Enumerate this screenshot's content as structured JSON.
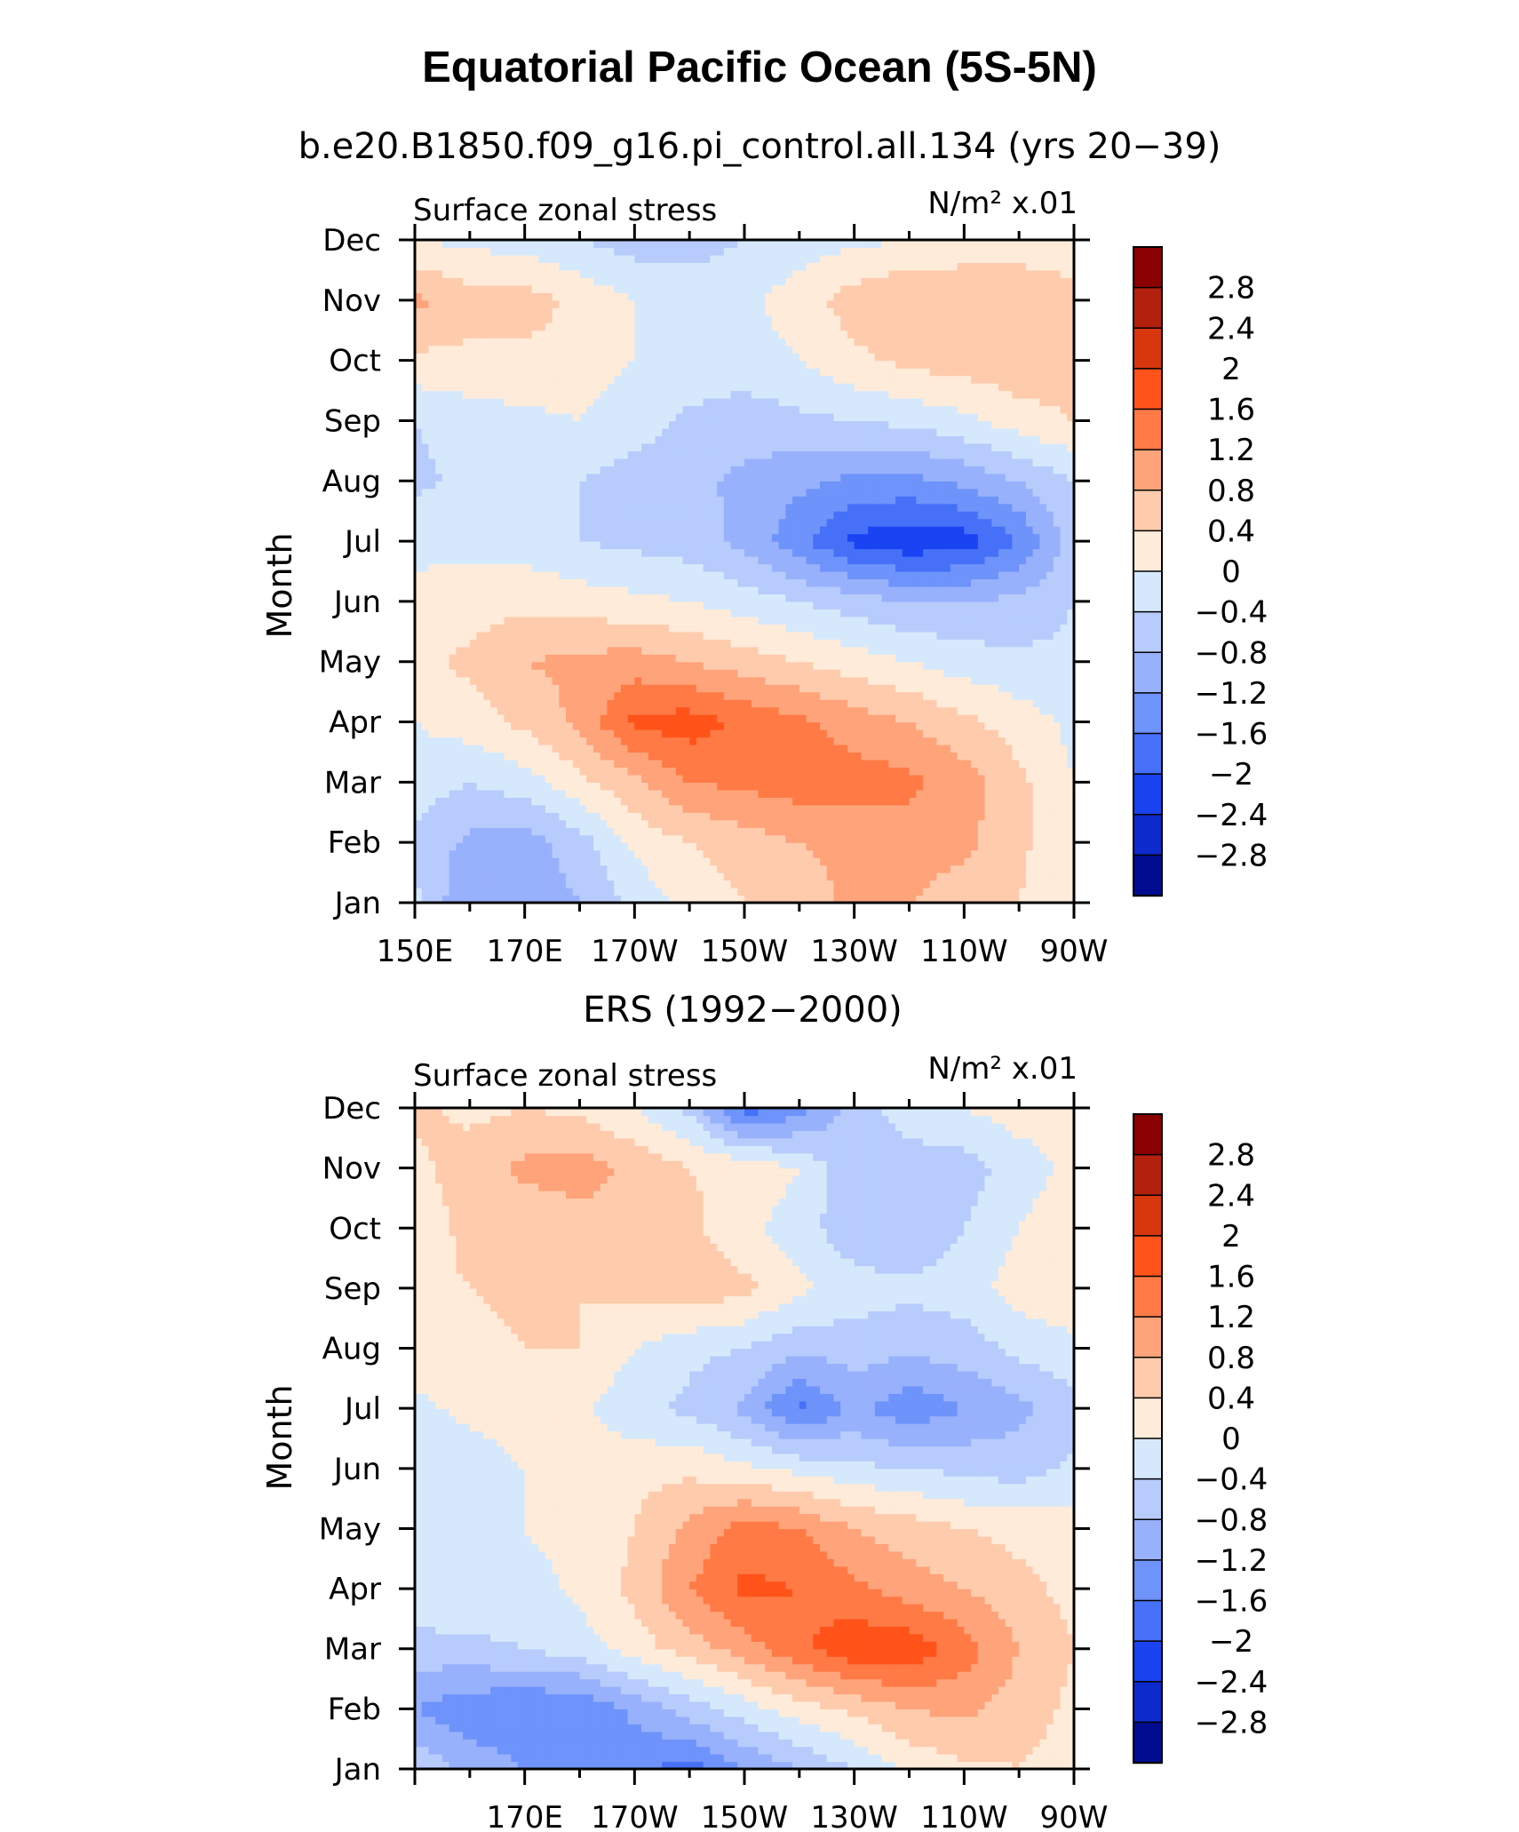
{
  "title": "Equatorial Pacific Ocean (5S-5N)",
  "colorbar": {
    "labels": [
      "2.8",
      "2.4",
      "2",
      "1.6",
      "1.2",
      "0.8",
      "0.4",
      "0",
      "−0.4",
      "−0.8",
      "−1.2",
      "−1.6",
      "−2",
      "−2.4",
      "−2.8"
    ],
    "colors": [
      "#8b0000",
      "#b3200e",
      "#d8370e",
      "#ff531a",
      "#ff7a45",
      "#ffa37a",
      "#ffcbad",
      "#ffebd9",
      "#d6e9fc",
      "#b7ccfc",
      "#98b1fc",
      "#6e93fa",
      "#4670f8",
      "#1a43f2",
      "#0d2acc",
      "#000c8f"
    ]
  },
  "chart_data": [
    {
      "type": "heatmap",
      "subtitle": "b.e20.B1850.f09_g16.pi_control.all.134 (yrs 20−39)",
      "variable": "Surface zonal stress",
      "units": "N/m² x.01",
      "ylabel": "Month",
      "y_categories": [
        "Jan",
        "Feb",
        "Mar",
        "Apr",
        "May",
        "Jun",
        "Jul",
        "Aug",
        "Sep",
        "Oct",
        "Nov",
        "Dec"
      ],
      "x_ticks": [
        "150E",
        "170E",
        "170W",
        "150W",
        "130W",
        "110W",
        "90W"
      ],
      "x_values": [
        "150E",
        "160E",
        "170E",
        "180",
        "170W",
        "160W",
        "150W",
        "140W",
        "130W",
        "120W",
        "110W",
        "100W",
        "90W"
      ],
      "values": [
        [
          -0.3,
          -1.2,
          -1.0,
          -0.8,
          -0.3,
          0.2,
          0.4,
          0.6,
          0.9,
          0.8,
          0.6,
          0.4,
          0.0
        ],
        [
          -0.5,
          -0.9,
          -1.0,
          -0.6,
          0.1,
          0.4,
          0.6,
          0.8,
          0.9,
          1.0,
          0.9,
          0.5,
          0.0
        ],
        [
          -0.2,
          -0.4,
          -0.2,
          0.3,
          0.7,
          1.2,
          1.3,
          1.4,
          1.4,
          1.3,
          1.0,
          0.5,
          0.0
        ],
        [
          0.0,
          0.2,
          0.5,
          0.9,
          1.7,
          1.8,
          1.5,
          1.3,
          1.0,
          0.8,
          0.5,
          0.2,
          -0.1
        ],
        [
          0.3,
          0.5,
          0.8,
          0.9,
          1.0,
          0.8,
          0.6,
          0.4,
          0.2,
          0.0,
          -0.2,
          -0.3,
          -0.3
        ],
        [
          0.1,
          0.2,
          0.3,
          0.2,
          0.1,
          0.0,
          -0.2,
          -0.4,
          -0.6,
          -0.8,
          -0.8,
          -0.7,
          -0.4
        ],
        [
          -0.1,
          -0.1,
          -0.2,
          -0.4,
          -0.5,
          -0.6,
          -0.9,
          -1.5,
          -2.1,
          -2.3,
          -2.2,
          -1.6,
          -0.6
        ],
        [
          -0.5,
          -0.3,
          -0.2,
          -0.4,
          -0.6,
          -0.7,
          -0.9,
          -1.1,
          -1.3,
          -1.3,
          -1.1,
          -0.8,
          -0.4
        ],
        [
          -0.4,
          -0.2,
          -0.1,
          0.0,
          -0.2,
          -0.5,
          -0.6,
          -0.5,
          -0.4,
          -0.3,
          -0.1,
          0.2,
          0.4
        ],
        [
          0.3,
          0.3,
          0.3,
          0.2,
          0.0,
          -0.1,
          -0.2,
          0.0,
          0.3,
          0.5,
          0.6,
          0.7,
          0.6
        ],
        [
          0.9,
          0.6,
          0.6,
          0.3,
          0.0,
          -0.1,
          -0.1,
          0.2,
          0.6,
          0.8,
          0.8,
          0.7,
          0.6
        ],
        [
          0.0,
          -0.1,
          -0.2,
          -0.4,
          -0.6,
          -0.6,
          -0.4,
          -0.2,
          -0.1,
          0.0,
          0.1,
          0.2,
          0.1
        ]
      ]
    },
    {
      "type": "heatmap",
      "subtitle": "ERS (1992−2000)",
      "variable": "Surface zonal stress",
      "units": "N/m² x.01",
      "ylabel": "Month",
      "y_categories": [
        "Jan",
        "Feb",
        "Mar",
        "Apr",
        "May",
        "Jun",
        "Jul",
        "Aug",
        "Sep",
        "Oct",
        "Nov",
        "Dec"
      ],
      "x_ticks": [
        "170E",
        "170W",
        "150W",
        "130W",
        "110W",
        "90W"
      ],
      "x_values": [
        "150E",
        "160E",
        "170E",
        "180",
        "170W",
        "160W",
        "150W",
        "140W",
        "130W",
        "120W",
        "110W",
        "100W",
        "90W"
      ],
      "values": [
        [
          -0.5,
          -0.9,
          -1.2,
          -1.4,
          -1.5,
          -1.8,
          -1.2,
          -0.8,
          -0.4,
          0.1,
          0.3,
          0.4,
          0.2
        ],
        [
          -1.2,
          -1.5,
          -1.6,
          -1.6,
          -1.1,
          -0.6,
          -0.2,
          0.2,
          0.5,
          0.8,
          0.9,
          0.6,
          0.3
        ],
        [
          -0.6,
          -0.5,
          -0.4,
          -0.2,
          0.2,
          0.6,
          1.0,
          1.5,
          1.9,
          1.9,
          1.4,
          0.8,
          0.4
        ],
        [
          0.0,
          -0.1,
          -0.2,
          0.1,
          0.5,
          1.2,
          1.7,
          1.6,
          1.3,
          1.0,
          0.8,
          0.5,
          0.3
        ],
        [
          -0.2,
          -0.1,
          0.0,
          0.2,
          0.4,
          0.9,
          1.4,
          1.2,
          0.8,
          0.6,
          0.4,
          0.3,
          0.2
        ],
        [
          -0.4,
          -0.2,
          0.0,
          0.2,
          0.3,
          0.3,
          0.1,
          -0.1,
          -0.3,
          -0.4,
          -0.5,
          -0.6,
          -0.3
        ],
        [
          -0.1,
          0.1,
          0.2,
          0.1,
          -0.3,
          -0.5,
          -0.9,
          -1.7,
          -1.1,
          -1.5,
          -1.2,
          -0.9,
          -0.6
        ],
        [
          0.2,
          0.3,
          0.4,
          0.4,
          0.0,
          -0.3,
          -0.4,
          -0.7,
          -0.6,
          -0.7,
          -0.6,
          -0.3,
          -0.1
        ],
        [
          0.3,
          0.4,
          0.5,
          0.4,
          0.5,
          0.7,
          0.5,
          0.1,
          -0.2,
          -0.3,
          -0.2,
          0.2,
          0.3
        ],
        [
          0.2,
          0.5,
          0.5,
          0.6,
          0.7,
          0.5,
          0.1,
          -0.2,
          -0.7,
          -0.8,
          -0.4,
          0.0,
          0.3
        ],
        [
          0.3,
          0.6,
          0.9,
          1.0,
          0.7,
          0.4,
          0.3,
          0.0,
          -0.8,
          -0.6,
          -0.6,
          -0.2,
          0.1
        ],
        [
          0.5,
          0.3,
          0.4,
          0.3,
          0.0,
          -0.5,
          -1.8,
          -1.4,
          -0.6,
          -0.2,
          0.0,
          0.2,
          0.1
        ]
      ]
    }
  ]
}
